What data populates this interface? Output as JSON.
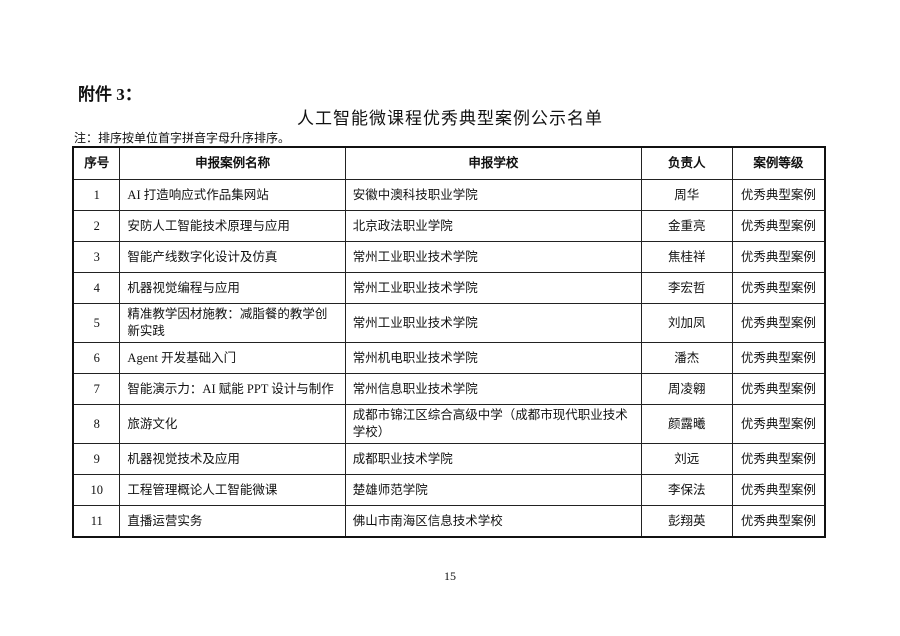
{
  "attachment_label": "附件 3：",
  "title": "人工智能微课程优秀典型案例公示名单",
  "note": "注：排序按单位首字拼音字母升序排序。",
  "table": {
    "headers": [
      "序号",
      "申报案例名称",
      "申报学校",
      "负责人",
      "案例等级"
    ],
    "rows": [
      [
        "1",
        "AI 打造响应式作品集网站",
        "安徽中澳科技职业学院",
        "周华",
        "优秀典型案例"
      ],
      [
        "2",
        "安防人工智能技术原理与应用",
        "北京政法职业学院",
        "金重亮",
        "优秀典型案例"
      ],
      [
        "3",
        "智能产线数字化设计及仿真",
        "常州工业职业技术学院",
        "焦桂祥",
        "优秀典型案例"
      ],
      [
        "4",
        "机器视觉编程与应用",
        "常州工业职业技术学院",
        "李宏哲",
        "优秀典型案例"
      ],
      [
        "5",
        "精准教学因材施教：减脂餐的教学创新实践",
        "常州工业职业技术学院",
        "刘加凤",
        "优秀典型案例"
      ],
      [
        "6",
        "Agent 开发基础入门",
        "常州机电职业技术学院",
        "潘杰",
        "优秀典型案例"
      ],
      [
        "7",
        "智能演示力：AI 赋能 PPT 设计与制作",
        "常州信息职业技术学院",
        "周凌翱",
        "优秀典型案例"
      ],
      [
        "8",
        "旅游文化",
        "成都市锦江区综合高级中学（成都市现代职业技术学校）",
        "颜露曦",
        "优秀典型案例"
      ],
      [
        "9",
        "机器视觉技术及应用",
        "成都职业技术学院",
        "刘远",
        "优秀典型案例"
      ],
      [
        "10",
        "工程管理概论人工智能微课",
        "楚雄师范学院",
        "李保法",
        "优秀典型案例"
      ],
      [
        "11",
        "直播运营实务",
        "佛山市南海区信息技术学校",
        "彭翔英",
        "优秀典型案例"
      ]
    ]
  },
  "page_number": "15"
}
